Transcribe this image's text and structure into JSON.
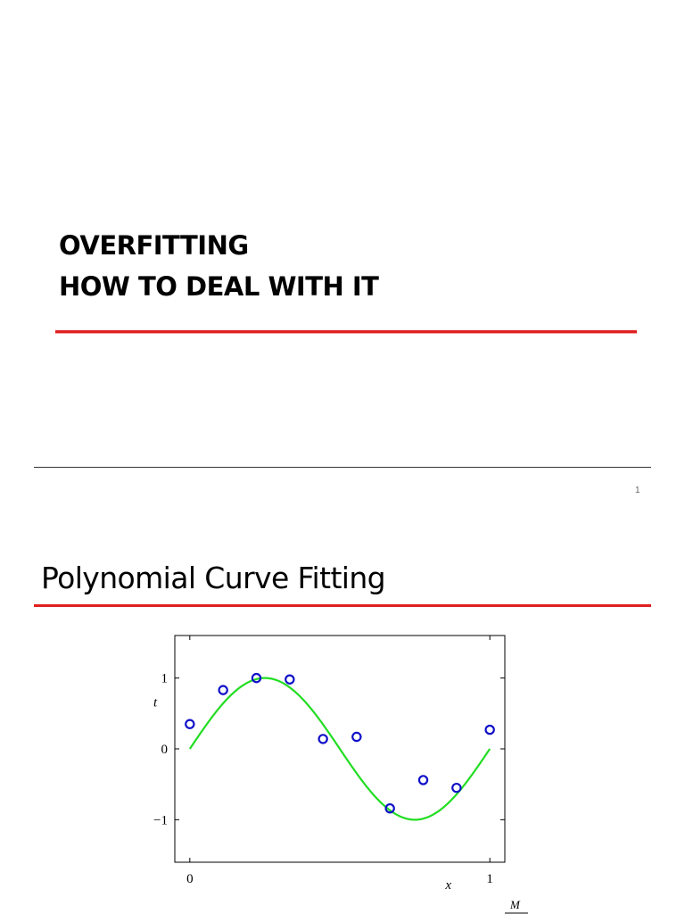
{
  "slide1": {
    "title_line1": "OVERFITTING",
    "title_line2": "HOW TO DEAL WITH IT",
    "page_number": "1"
  },
  "slide2": {
    "title": "Polynomial Curve Fitting",
    "footer_fragment": "M"
  },
  "chart_data": {
    "type": "scatter",
    "xlabel": "x",
    "ylabel": "t",
    "xlim": [
      -0.05,
      1.05
    ],
    "ylim": [
      -1.6,
      1.6
    ],
    "x_ticks": [
      {
        "value": 0,
        "label": "0"
      },
      {
        "value": 1,
        "label": "1"
      }
    ],
    "y_ticks": [
      {
        "value": -1,
        "label": "−1"
      },
      {
        "value": 0,
        "label": "0"
      },
      {
        "value": 1,
        "label": "1"
      }
    ],
    "points": {
      "x": [
        0.0,
        0.111,
        0.222,
        0.333,
        0.444,
        0.556,
        0.667,
        0.778,
        0.889,
        1.0
      ],
      "y": [
        0.35,
        0.83,
        1.0,
        0.98,
        0.14,
        0.17,
        -0.84,
        -0.44,
        -0.55,
        0.27
      ],
      "color": "#1010c8"
    },
    "curve": {
      "function": "sin(2*pi*x)",
      "color": "#22dd22"
    },
    "grid": false
  }
}
